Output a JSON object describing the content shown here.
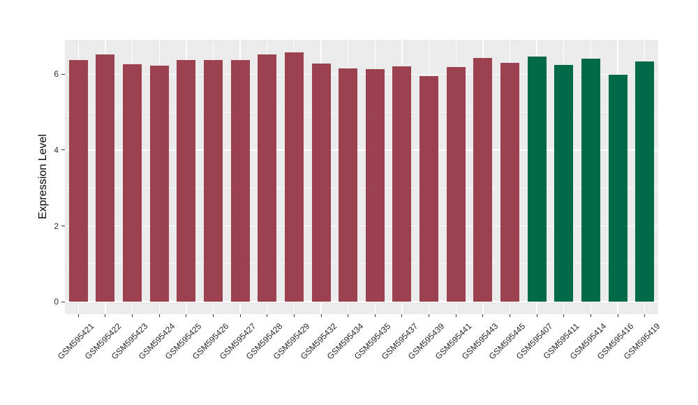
{
  "chart_data": {
    "type": "bar",
    "title": "",
    "xlabel": "",
    "ylabel": "Expression Level",
    "categories": [
      "GSM595421",
      "GSM595422",
      "GSM595423",
      "GSM595424",
      "GSM595425",
      "GSM595426",
      "GSM595427",
      "GSM595428",
      "GSM595429",
      "GSM595432",
      "GSM595434",
      "GSM595435",
      "GSM595437",
      "GSM595439",
      "GSM595441",
      "GSM595443",
      "GSM595445",
      "GSM595407",
      "GSM595411",
      "GSM595414",
      "GSM595416",
      "GSM595419"
    ],
    "values": [
      6.37,
      6.52,
      6.26,
      6.23,
      6.38,
      6.38,
      6.38,
      6.52,
      6.58,
      6.29,
      6.16,
      6.13,
      6.21,
      5.95,
      6.2,
      6.43,
      6.31,
      6.46,
      6.24,
      6.42,
      5.98,
      6.33
    ],
    "groups": [
      "A",
      "A",
      "A",
      "A",
      "A",
      "A",
      "A",
      "A",
      "A",
      "A",
      "A",
      "A",
      "A",
      "A",
      "A",
      "A",
      "A",
      "B",
      "B",
      "B",
      "B",
      "B"
    ],
    "group_colors": {
      "A": "#9B4150",
      "B": "#006948"
    },
    "ylim": [
      -0.33,
      6.91
    ],
    "yticks": [
      0,
      2,
      4,
      6
    ],
    "yticks_minor": [
      1,
      3,
      5
    ],
    "grid": "on",
    "legend": "none",
    "panel_bg": "#EBEBEB",
    "grid_color": "#FFFFFF",
    "tick_color": "#333333"
  }
}
